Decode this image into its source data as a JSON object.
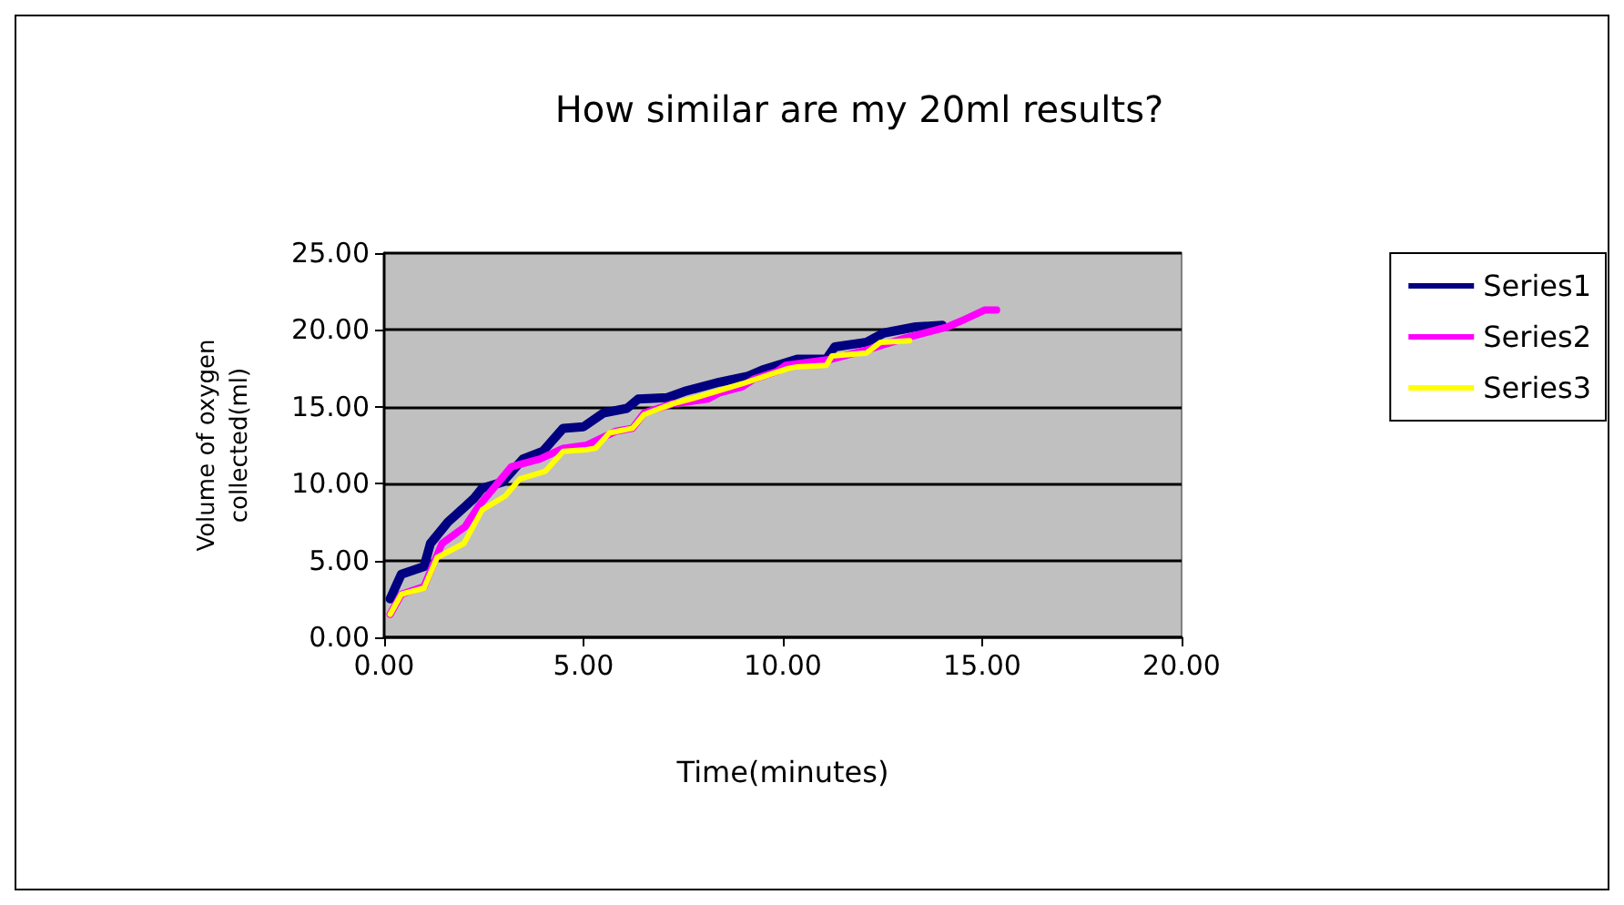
{
  "chart_data": {
    "type": "line",
    "title": "How similar are my 20ml results?",
    "xlabel": "Time(minutes)",
    "ylabel": "Volume of oxygen\ncollected(ml)",
    "series": [
      {
        "name": "Series1",
        "color": "#000080",
        "x": [
          0.15,
          0.43,
          1.0,
          1.16,
          1.6,
          2.24,
          2.46,
          2.97,
          3.48,
          3.98,
          4.49,
          5.0,
          5.5,
          6.09,
          6.37,
          7.1,
          7.53,
          8.4,
          9.13,
          9.49,
          10.36,
          11.09,
          11.3,
          12.1,
          12.53,
          13.33,
          14.0
        ],
        "values": [
          2.5,
          4.1,
          4.6,
          6.1,
          7.5,
          9.0,
          9.7,
          10.1,
          11.6,
          12.1,
          13.6,
          13.7,
          14.6,
          14.9,
          15.5,
          15.6,
          16.0,
          16.6,
          17.0,
          17.4,
          18.1,
          18.1,
          18.9,
          19.2,
          19.8,
          20.2,
          20.3
        ]
      },
      {
        "name": "Series2",
        "color": "#ff00ff",
        "x": [
          0.15,
          0.43,
          1.0,
          1.45,
          2.03,
          2.39,
          3.19,
          3.91,
          4.49,
          5.07,
          5.8,
          6.23,
          6.52,
          7.24,
          8.11,
          8.4,
          8.98,
          9.27,
          9.85,
          10.07,
          11.23,
          12.1,
          13.1,
          14.13,
          14.57,
          15.07,
          15.36
        ],
        "values": [
          1.5,
          2.8,
          3.3,
          6.1,
          7.2,
          8.6,
          11.1,
          11.6,
          12.3,
          12.5,
          13.4,
          13.6,
          14.6,
          15.2,
          15.5,
          15.9,
          16.3,
          16.8,
          17.3,
          17.7,
          18.1,
          18.7,
          19.5,
          20.2,
          20.7,
          21.3,
          21.3
        ]
      },
      {
        "name": "Series3",
        "color": "#ffff00",
        "x": [
          0.15,
          0.43,
          1.0,
          1.33,
          2.0,
          2.46,
          3.04,
          3.4,
          4.04,
          4.49,
          5.07,
          5.3,
          5.65,
          6.23,
          6.52,
          7.24,
          7.82,
          8.98,
          10.14,
          10.36,
          11.09,
          11.23,
          12.1,
          12.45,
          13.18
        ],
        "values": [
          1.5,
          2.8,
          3.2,
          5.2,
          6.1,
          8.3,
          9.2,
          10.3,
          10.8,
          12.1,
          12.2,
          12.3,
          13.3,
          13.6,
          14.5,
          15.2,
          15.6,
          16.5,
          17.5,
          17.6,
          17.7,
          18.3,
          18.5,
          19.2,
          19.3
        ]
      }
    ],
    "xlim": [
      0,
      20
    ],
    "xticks": [
      {
        "value": 0,
        "label": "0.00"
      },
      {
        "value": 5,
        "label": "5.00"
      },
      {
        "value": 10,
        "label": "10.00"
      },
      {
        "value": 15,
        "label": "15.00"
      },
      {
        "value": 20,
        "label": "20.00"
      }
    ],
    "ylim": [
      0,
      25
    ],
    "yticks": [
      {
        "value": 0,
        "label": "0.00"
      },
      {
        "value": 5,
        "label": "5.00"
      },
      {
        "value": 10,
        "label": "10.00"
      },
      {
        "value": 15,
        "label": "15.00"
      },
      {
        "value": 20,
        "label": "20.00"
      },
      {
        "value": 25,
        "label": "25.00"
      }
    ],
    "grid": "y",
    "legend": "right",
    "marker": "none",
    "line_style": "solid"
  }
}
